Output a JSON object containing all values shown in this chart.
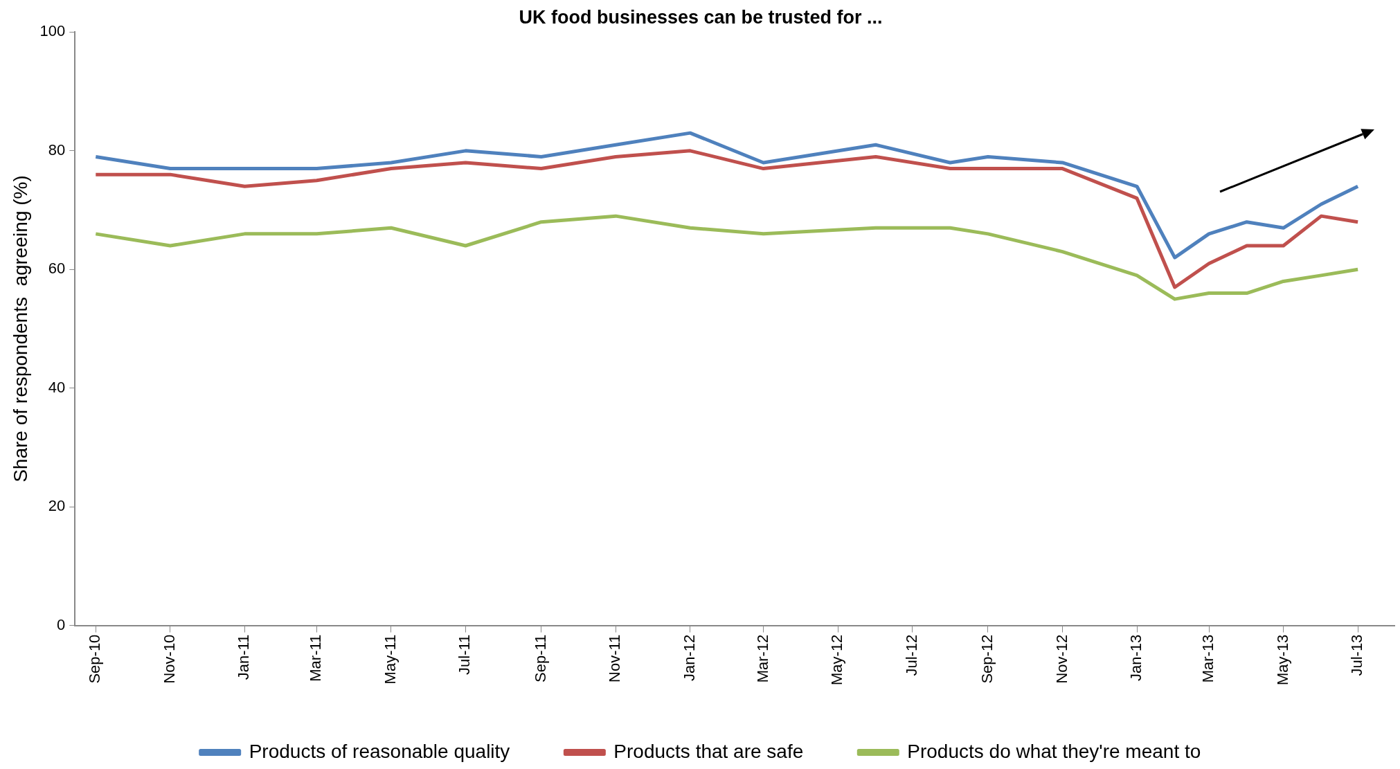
{
  "chart_data": {
    "type": "line",
    "title": "UK food businesses can be trusted for ...",
    "ylabel": "Share of respondents  agreeing (%)",
    "x": [
      "2010-09",
      "2010-11",
      "2011-01",
      "2011-03",
      "2011-05",
      "2011-07",
      "2011-09",
      "2011-11",
      "2012-01",
      "2012-03",
      "2012-06",
      "2012-08",
      "2012-09",
      "2012-11",
      "2013-01",
      "2013-02",
      "2013-03",
      "2013-04",
      "2013-05",
      "2013-06",
      "2013-07"
    ],
    "series": [
      {
        "name": "Products of reasonable quality",
        "color": "#4f81bd",
        "values": [
          79,
          77,
          77,
          77,
          78,
          80,
          79,
          81,
          83,
          78,
          81,
          78,
          79,
          78,
          74,
          62,
          66,
          68,
          67,
          71,
          74
        ]
      },
      {
        "name": "Products that are safe",
        "color": "#c0504d",
        "values": [
          76,
          76,
          74,
          75,
          77,
          78,
          77,
          79,
          80,
          77,
          79,
          77,
          77,
          77,
          72,
          57,
          61,
          64,
          64,
          69,
          68
        ]
      },
      {
        "name": "Products do what they're meant to",
        "color": "#9bbb59",
        "values": [
          66,
          64,
          66,
          66,
          67,
          64,
          68,
          69,
          67,
          66,
          67,
          67,
          66,
          63,
          59,
          55,
          56,
          56,
          58,
          59,
          60
        ]
      }
    ],
    "xlim": [
      "2010-08-15",
      "2013-07-31"
    ],
    "xticks": [
      {
        "value": "2010-09",
        "label": "Sep-10"
      },
      {
        "value": "2010-11",
        "label": "Nov-10"
      },
      {
        "value": "2011-01",
        "label": "Jan-11"
      },
      {
        "value": "2011-03",
        "label": "Mar-11"
      },
      {
        "value": "2011-05",
        "label": "May-11"
      },
      {
        "value": "2011-07",
        "label": "Jul-11"
      },
      {
        "value": "2011-09",
        "label": "Sep-11"
      },
      {
        "value": "2011-11",
        "label": "Nov-11"
      },
      {
        "value": "2012-01",
        "label": "Jan-12"
      },
      {
        "value": "2012-03",
        "label": "Mar-12"
      },
      {
        "value": "2012-05",
        "label": "May-12"
      },
      {
        "value": "2012-07",
        "label": "Jul-12"
      },
      {
        "value": "2012-09",
        "label": "Sep-12"
      },
      {
        "value": "2012-11",
        "label": "Nov-12"
      },
      {
        "value": "2013-01",
        "label": "Jan-13"
      },
      {
        "value": "2013-03",
        "label": "Mar-13"
      },
      {
        "value": "2013-05",
        "label": "May-13"
      },
      {
        "value": "2013-07",
        "label": "Jul-13"
      }
    ],
    "ylim": [
      0,
      100
    ],
    "yticks": [
      0,
      20,
      40,
      60,
      80,
      100
    ],
    "grid": false,
    "legend": "bottom",
    "marker": "none",
    "line_style": "solid"
  }
}
